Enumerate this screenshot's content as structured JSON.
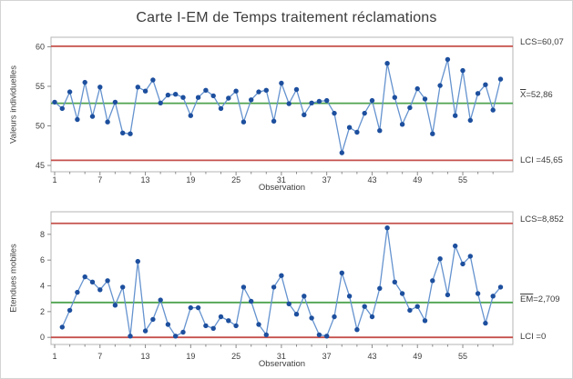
{
  "title": "Carte I-EM de Temps traitement réclamations",
  "colors": {
    "series_line": "#6593cf",
    "marker": "#1d4f9e",
    "control_limit": "#c5504b",
    "center_line": "#4ea24e",
    "plot_border": "#b5b5b5",
    "tick": "#8a8a8a",
    "text": "#3c3c3c"
  },
  "chart_data": [
    {
      "type": "line",
      "subtype": "individuals-control-chart",
      "title": "",
      "ylabel": "Valeurs individuelles",
      "xlabel": "Observation",
      "x_first": 1,
      "values": [
        53.0,
        52.2,
        54.3,
        50.8,
        55.5,
        51.2,
        54.9,
        50.5,
        53.0,
        49.1,
        49.0,
        54.9,
        54.4,
        55.8,
        52.9,
        53.9,
        54.0,
        53.6,
        51.3,
        53.6,
        54.5,
        53.8,
        52.2,
        53.5,
        54.4,
        50.5,
        53.3,
        54.3,
        54.5,
        50.6,
        55.4,
        52.8,
        54.6,
        51.4,
        52.9,
        53.1,
        53.2,
        51.6,
        46.6,
        49.8,
        49.2,
        51.6,
        53.2,
        49.4,
        57.9,
        53.6,
        50.2,
        52.3,
        54.7,
        53.4,
        49.0,
        55.1,
        58.4,
        51.3,
        57.0,
        50.7,
        54.1,
        55.2,
        52.0,
        55.9
      ],
      "ucl": 60.07,
      "center": 52.86,
      "lcl": 45.65,
      "ylim": [
        44.2,
        61.2
      ],
      "yticks": [
        45,
        50,
        55,
        60
      ],
      "xticks": [
        1,
        7,
        13,
        19,
        25,
        31,
        37,
        43,
        49,
        55
      ],
      "labels": {
        "ucl": "LCS=60,07",
        "center_prefix": "X",
        "center_rest": "=52,86",
        "lcl": "LCI =45,65"
      }
    },
    {
      "type": "line",
      "subtype": "moving-range-control-chart",
      "title": "",
      "ylabel": "Etendues mobiles",
      "xlabel": "Observation",
      "x_first": 2,
      "values": [
        0.8,
        2.1,
        3.5,
        4.7,
        4.3,
        3.7,
        4.4,
        2.5,
        3.9,
        0.1,
        5.9,
        0.5,
        1.4,
        2.9,
        1.0,
        0.1,
        0.4,
        2.3,
        2.3,
        0.9,
        0.7,
        1.6,
        1.3,
        0.9,
        3.9,
        2.8,
        1.0,
        0.2,
        3.9,
        4.8,
        2.6,
        1.8,
        3.2,
        1.5,
        0.2,
        0.1,
        1.6,
        5.0,
        3.2,
        0.6,
        2.4,
        1.6,
        3.8,
        8.5,
        4.3,
        3.4,
        2.1,
        2.4,
        1.3,
        4.4,
        6.1,
        3.3,
        7.1,
        5.7,
        6.3,
        3.4,
        1.1,
        3.2,
        3.9
      ],
      "ucl": 8.852,
      "center": 2.709,
      "lcl": 0,
      "ylim": [
        -0.55,
        9.75
      ],
      "yticks": [
        0,
        2,
        4,
        6,
        8
      ],
      "xticks": [
        1,
        7,
        13,
        19,
        25,
        31,
        37,
        43,
        49,
        55
      ],
      "labels": {
        "ucl": "LCS=8,852",
        "center_prefix": "EM",
        "center_rest": "=2,709",
        "lcl": "LCI =0"
      }
    }
  ]
}
